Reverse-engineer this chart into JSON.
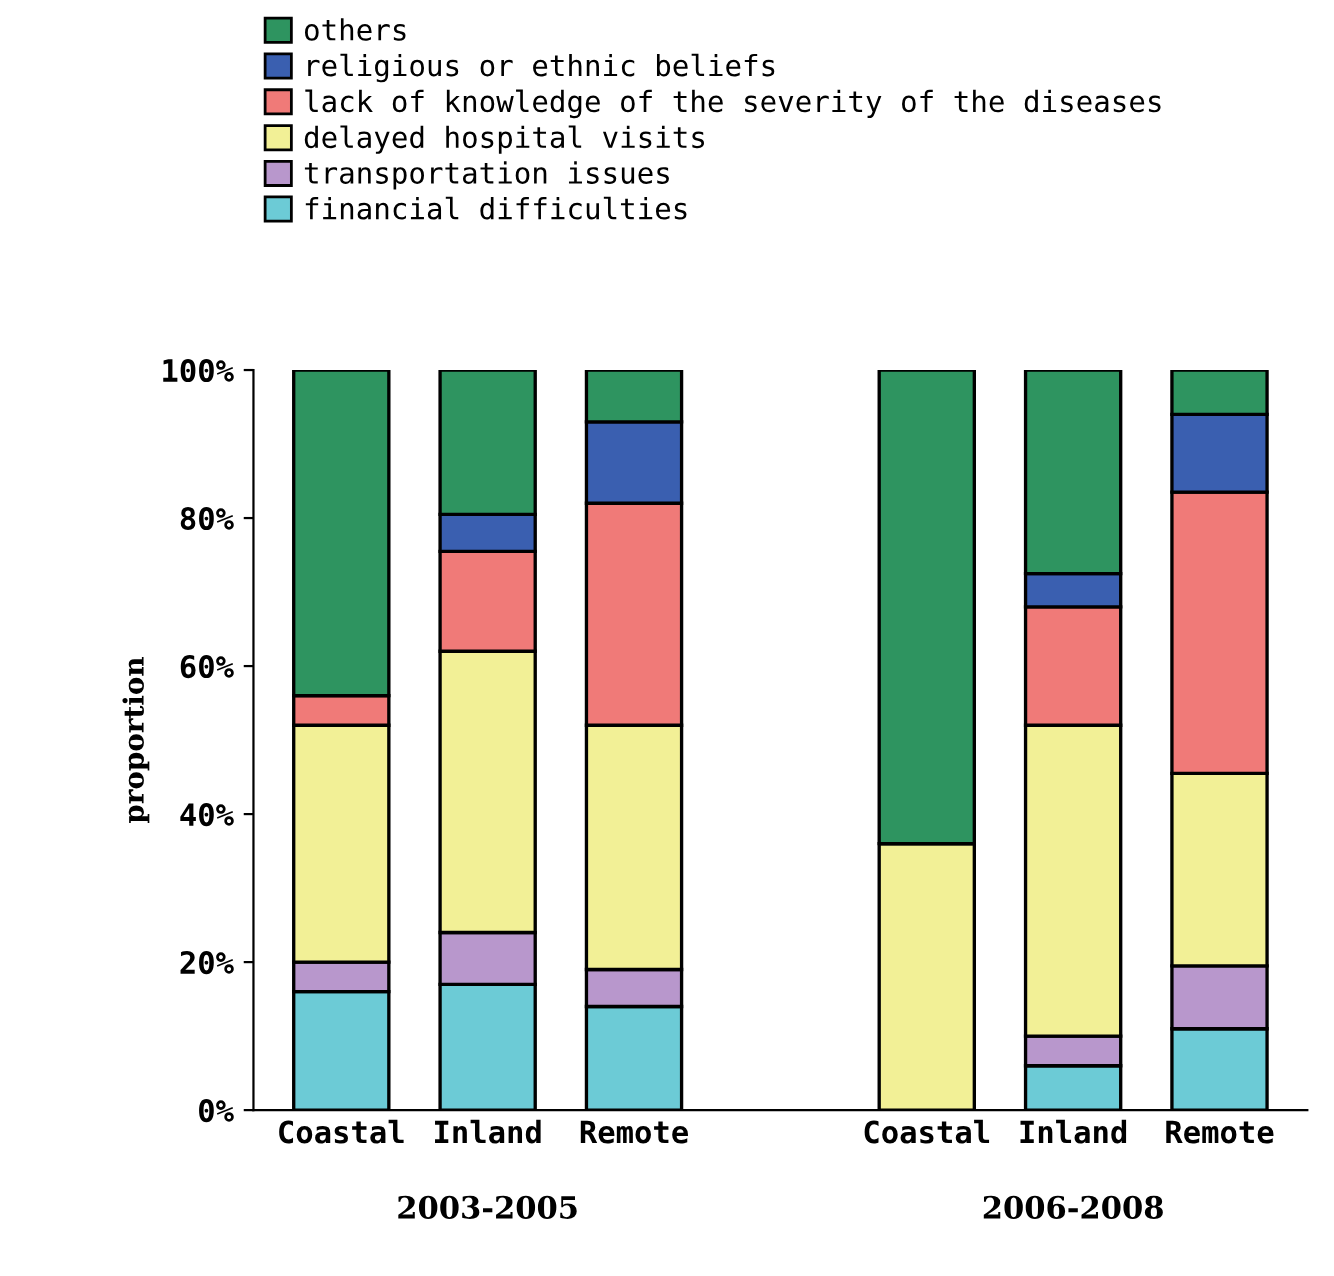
{
  "chart_data": {
    "type": "bar",
    "stacked": true,
    "ylabel": "proportion",
    "categories": [
      "Coastal",
      "Inland",
      "Remote",
      null,
      "Coastal",
      "Inland",
      "Remote"
    ],
    "series": [
      {
        "name": "financial difficulties",
        "color": "#6ccbd6",
        "values": [
          16,
          17,
          14,
          null,
          0,
          6,
          11
        ]
      },
      {
        "name": "transportation issues",
        "color": "#b897cc",
        "values": [
          4,
          7,
          5,
          null,
          0,
          4,
          8.5
        ]
      },
      {
        "name": "delayed hospital visits",
        "color": "#f2f096",
        "values": [
          32,
          38,
          33,
          null,
          36,
          42,
          26
        ]
      },
      {
        "name": "lack of knowledge of the severity of the diseases",
        "color": "#f07a78",
        "values": [
          4,
          13.5,
          30,
          null,
          0,
          16,
          38
        ]
      },
      {
        "name": "religious or ethnic beliefs",
        "color": "#3a5fb0",
        "values": [
          0,
          5,
          11,
          null,
          0,
          4.5,
          10.5
        ]
      },
      {
        "name": "others",
        "color": "#2e9460",
        "values": [
          44,
          19.5,
          7,
          null,
          64,
          27.5,
          6
        ]
      }
    ],
    "ylim": [
      0,
      100
    ],
    "yticks": [
      {
        "value": 0,
        "label": "0%"
      },
      {
        "value": 20,
        "label": "20%"
      },
      {
        "value": 40,
        "label": "40%"
      },
      {
        "value": 60,
        "label": "60%"
      },
      {
        "value": 80,
        "label": "80%"
      },
      {
        "value": 100,
        "label": "100%"
      }
    ],
    "annotations": [
      "2003-2005",
      "2006-2008"
    ],
    "grid": false,
    "legend": "top"
  }
}
